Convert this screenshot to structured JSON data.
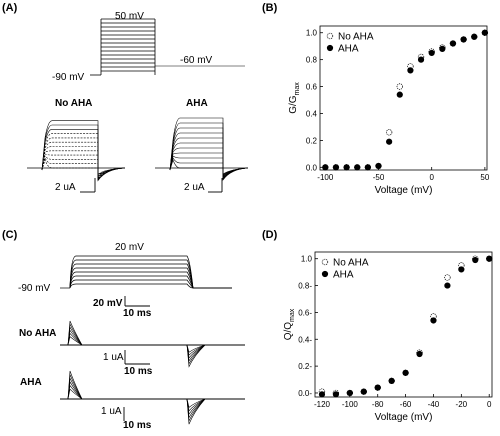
{
  "panels": {
    "A": {
      "letter": "(A)",
      "protocol_top": "50 mV",
      "protocol_hold": "-90 mV",
      "protocol_tail": "-60 mV",
      "trace_left": "No AHA",
      "trace_right": "AHA",
      "scale_left": "2 uA",
      "scale_right": "2 uA"
    },
    "B": {
      "letter": "(B)"
    },
    "C": {
      "letter": "(C)",
      "protocol_top": "20 mV",
      "protocol_hold": "-90 mV",
      "scale_v": "20 mV",
      "scale_t": "10 ms",
      "trace_top": "No AHA",
      "trace_bottom": "AHA",
      "scale_i1": "1 uA",
      "scale_t1": "10 ms",
      "scale_i2": "1 uA",
      "scale_t2": "10 ms"
    },
    "D": {
      "letter": "(D)"
    }
  },
  "chart_data": [
    {
      "panel": "B",
      "type": "scatter",
      "ylabel_main": "G/G",
      "ylabel_sub": "max",
      "xlabel": "Voltage (mV)",
      "xlim": [
        -105,
        52
      ],
      "ylim": [
        -0.02,
        1.05
      ],
      "xticks": [
        -100,
        -50,
        0,
        50
      ],
      "yticks": [
        "0.0",
        "0.2",
        "0.4",
        "0.6",
        "0.8",
        "1.0"
      ],
      "yticks_values": [
        0,
        0.2,
        0.4,
        0.6,
        0.8,
        1.0
      ],
      "legend": "top-left",
      "series": [
        {
          "name": "No AHA",
          "marker": "open",
          "x": [
            -100,
            -90,
            -80,
            -70,
            -60,
            -50,
            -40,
            -30,
            -20,
            -10,
            0,
            10,
            20,
            30,
            40,
            50
          ],
          "y": [
            0,
            0,
            0,
            0,
            0,
            0.01,
            0.26,
            0.6,
            0.75,
            0.82,
            0.86,
            0.89,
            0.92,
            0.95,
            0.97,
            1.0
          ]
        },
        {
          "name": "AHA",
          "marker": "filled",
          "x": [
            -100,
            -90,
            -80,
            -70,
            -60,
            -50,
            -40,
            -30,
            -20,
            -10,
            0,
            10,
            20,
            30,
            40,
            50
          ],
          "y": [
            0,
            0,
            0,
            0,
            0,
            0.01,
            0.19,
            0.54,
            0.72,
            0.8,
            0.85,
            0.88,
            0.92,
            0.95,
            0.97,
            1.0
          ]
        }
      ]
    },
    {
      "panel": "D",
      "type": "scatter",
      "ylabel_main": "Q/Q",
      "ylabel_sub": "max",
      "xlabel": "Voltage (mV)",
      "xlim": [
        -125,
        2
      ],
      "ylim": [
        -0.03,
        1.05
      ],
      "xticks": [
        -120,
        -100,
        -80,
        -60,
        -40,
        -20,
        0
      ],
      "yticks": [
        "0.0-",
        "0.2-",
        "0.4-",
        "0.6-",
        "0.8-",
        "1.0"
      ],
      "yticks_values": [
        0,
        0.2,
        0.4,
        0.6,
        0.8,
        1.0
      ],
      "legend": "top-left",
      "series": [
        {
          "name": "No AHA",
          "marker": "open",
          "x": [
            -120,
            -110,
            -100,
            -90,
            -80,
            -70,
            -60,
            -50,
            -40,
            -30,
            -20,
            -10,
            0
          ],
          "y": [
            0.01,
            0,
            0,
            0.01,
            0.04,
            0.09,
            0.15,
            0.3,
            0.57,
            0.86,
            0.95,
            1.0,
            1.0
          ]
        },
        {
          "name": "AHA",
          "marker": "filled",
          "x": [
            -120,
            -110,
            -100,
            -90,
            -80,
            -70,
            -60,
            -50,
            -40,
            -30,
            -20,
            -10,
            0
          ],
          "y": [
            -0.01,
            -0.01,
            0,
            0.01,
            0.04,
            0.09,
            0.15,
            0.29,
            0.54,
            0.8,
            0.92,
            0.99,
            1.0
          ]
        }
      ]
    }
  ]
}
